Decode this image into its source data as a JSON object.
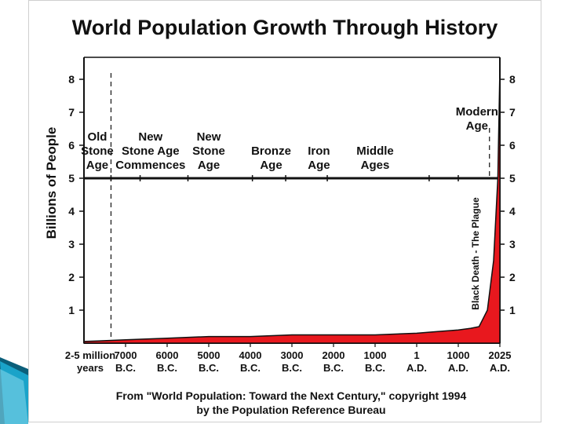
{
  "colors": {
    "fill": "#e8181e",
    "ink": "#111111",
    "decor_teal": "#1aa3c9",
    "decor_dark": "#0b5f7a"
  },
  "chart_data": {
    "type": "area",
    "title": "World Population Growth Through History",
    "ylabel": "Billions of People",
    "xlabel": "",
    "ylim": [
      0,
      8.5
    ],
    "y_ticks": [
      "1",
      "2",
      "3",
      "4",
      "5",
      "6",
      "7",
      "8"
    ],
    "x_ticks": [
      {
        "top": "2-5 million",
        "bottom": "years"
      },
      {
        "top": "7000",
        "bottom": "B.C."
      },
      {
        "top": "6000",
        "bottom": "B.C."
      },
      {
        "top": "5000",
        "bottom": "B.C."
      },
      {
        "top": "4000",
        "bottom": "B.C."
      },
      {
        "top": "3000",
        "bottom": "B.C."
      },
      {
        "top": "2000",
        "bottom": "B.C."
      },
      {
        "top": "1000",
        "bottom": "B.C."
      },
      {
        "top": "1",
        "bottom": "A.D."
      },
      {
        "top": "1000",
        "bottom": "A.D."
      },
      {
        "top": "2025",
        "bottom": "A.D."
      }
    ],
    "eras": [
      {
        "lines": [
          "Old",
          "Stone",
          "Age"
        ]
      },
      {
        "lines": [
          "New",
          "Stone Age",
          "Commences"
        ]
      },
      {
        "lines": [
          "New",
          "Stone",
          "Age"
        ]
      },
      {
        "lines": [
          "Bronze",
          "Age"
        ]
      },
      {
        "lines": [
          "Iron",
          "Age"
        ]
      },
      {
        "lines": [
          "Middle",
          "Ages"
        ]
      },
      {
        "lines": [
          "Modern",
          "Age"
        ]
      }
    ],
    "era_band_level": 5,
    "annotation": "Black Death - The Plague",
    "series": [
      {
        "x": [
          0,
          1,
          2,
          3,
          4,
          5,
          6,
          7,
          8,
          8.5,
          9,
          9.3,
          9.5,
          9.7,
          9.85,
          9.95,
          10
        ],
        "values": [
          0.05,
          0.1,
          0.15,
          0.2,
          0.2,
          0.25,
          0.25,
          0.25,
          0.3,
          0.35,
          0.4,
          0.45,
          0.5,
          1.0,
          2.5,
          5.0,
          8.3
        ]
      }
    ]
  },
  "source": {
    "line1": "From \"World Population: Toward the Next Century,\" copyright 1994",
    "line2": "by the Population Reference Bureau"
  }
}
